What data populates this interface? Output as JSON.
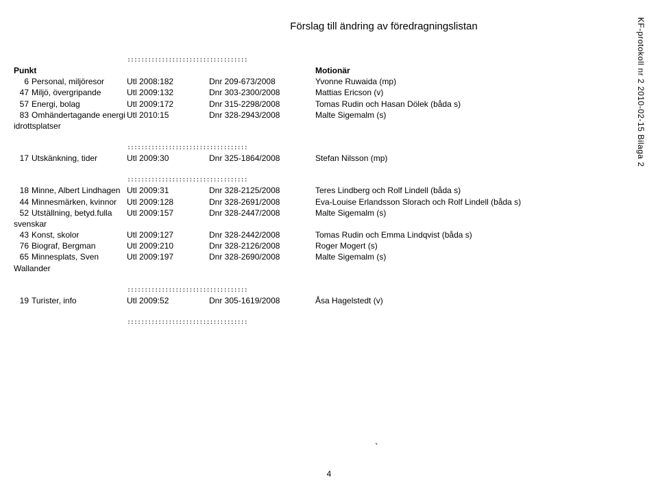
{
  "title": "Förslag till ändring av föredragningslistan",
  "sideText": "KF-protokoll nr 2 2010-02-15 Bilaga 2",
  "dottedLine": ":::::::::::::::::::::::::::::::::::",
  "headers": {
    "punkt": "Punkt",
    "motionar": "Motionär"
  },
  "group1": [
    {
      "num": "6",
      "name": "Personal, miljöresor",
      "utl": "Utl 2008:182",
      "dnr": "Dnr 209-673/2008",
      "motion": "Yvonne Ruwaida (mp)"
    },
    {
      "num": "47",
      "name": "Miljö, övergripande",
      "utl": "Utl 2009:132",
      "dnr": "Dnr 303-2300/2008",
      "motion": "Mattias Ericson (v)"
    },
    {
      "num": "57",
      "name": "Energi, bolag",
      "utl": "Utl 2009:172",
      "dnr": "Dnr 315-2298/2008",
      "motion": "Tomas Rudin och Hasan Dölek (båda s)"
    },
    {
      "num": "83",
      "name": "Omhändertagande energi idrottsplatser",
      "utl": "Utl 2010:15",
      "dnr": "Dnr 328-2943/2008",
      "motion": "Malte Sigemalm (s)"
    }
  ],
  "group2": [
    {
      "num": "17",
      "name": "Utskänkning, tider",
      "utl": "Utl 2009:30",
      "dnr": "Dnr 325-1864/2008",
      "motion": "Stefan Nilsson (mp)"
    }
  ],
  "group3": [
    {
      "num": "18",
      "name": "Minne, Albert Lindhagen",
      "utl": "Utl 2009:31",
      "dnr": "Dnr 328-2125/2008",
      "motion": "Teres Lindberg och Rolf Lindell (båda s)"
    },
    {
      "num": "44",
      "name": "Minnesmärken, kvinnor",
      "utl": "Utl 2009:128",
      "dnr": "Dnr 328-2691/2008",
      "motion": "Eva-Louise Erlandsson Slorach och Rolf Lindell (båda s)"
    },
    {
      "num": "52",
      "name": "Utställning, betyd.fulla svenskar",
      "utl": "Utl 2009:157",
      "dnr": "Dnr 328-2447/2008",
      "motion": "Malte Sigemalm (s)"
    },
    {
      "num": "43",
      "name": "Konst, skolor",
      "utl": "Utl 2009:127",
      "dnr": "Dnr 328-2442/2008",
      "motion": "Tomas Rudin och Emma Lindqvist (båda s)"
    },
    {
      "num": "76",
      "name": "Biograf, Bergman",
      "utl": "Utl 2009:210",
      "dnr": "Dnr 328-2126/2008",
      "motion": "Roger Mogert (s)"
    },
    {
      "num": "65",
      "name": "Minnesplats, Sven Wallander",
      "utl": "Utl 2009:197",
      "dnr": "Dnr 328-2690/2008",
      "motion": "Malte Sigemalm (s)"
    }
  ],
  "group4": [
    {
      "num": "19",
      "name": "Turister, info",
      "utl": "Utl 2009:52",
      "dnr": "Dnr 305-1619/2008",
      "motion": "Åsa Hagelstedt (v)"
    }
  ],
  "pageNumber": "4"
}
